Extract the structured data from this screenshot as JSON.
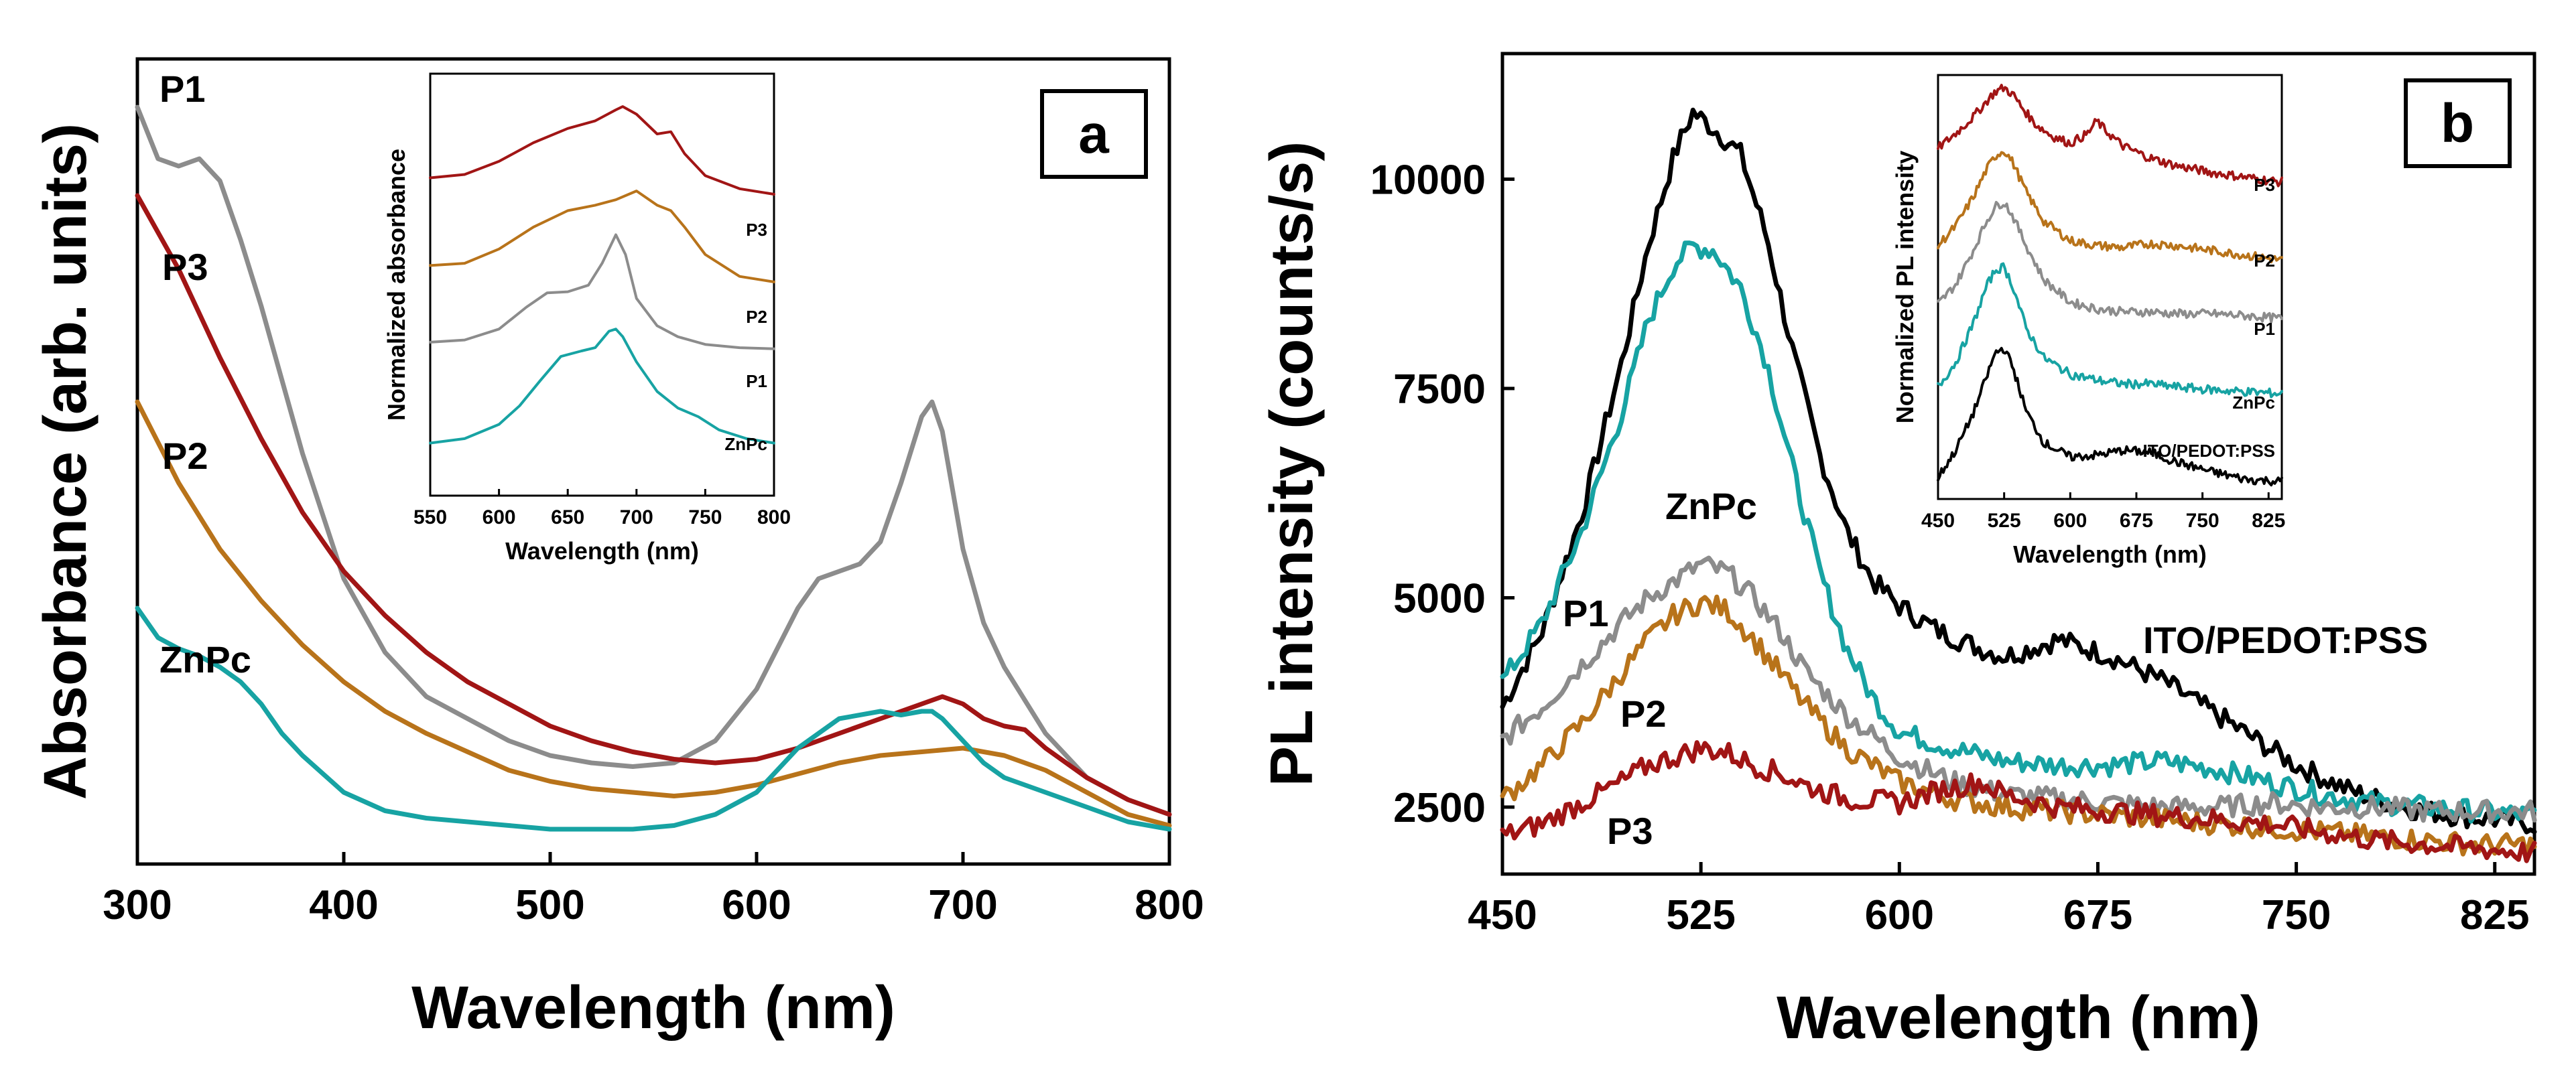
{
  "colors": {
    "P1": "#8c8c8c",
    "P2": "#b8731a",
    "P3": "#a11515",
    "ZnPc": "#17a3a3",
    "ITO/PEDOT:PSS": "#000000"
  },
  "chart_data": [
    {
      "panel": "a",
      "type": "line",
      "title": "",
      "xlabel": "Wavelength  (nm)",
      "ylabel": "Absorbance  (arb. units)",
      "xlim": [
        300,
        800
      ],
      "xticks": [
        "300",
        "400",
        "500",
        "600",
        "700",
        "800"
      ],
      "yticks": [],
      "series": [
        {
          "name": "P1",
          "x": [
            300,
            310,
            320,
            330,
            340,
            350,
            360,
            370,
            380,
            400,
            420,
            440,
            460,
            480,
            500,
            520,
            540,
            560,
            580,
            600,
            620,
            630,
            640,
            650,
            660,
            670,
            680,
            685,
            690,
            700,
            710,
            720,
            740,
            760,
            780,
            800
          ],
          "y": [
            1.0,
            0.93,
            0.92,
            0.93,
            0.9,
            0.82,
            0.73,
            0.63,
            0.53,
            0.36,
            0.26,
            0.2,
            0.17,
            0.14,
            0.12,
            0.11,
            0.105,
            0.11,
            0.14,
            0.21,
            0.32,
            0.36,
            0.37,
            0.38,
            0.41,
            0.49,
            0.58,
            0.6,
            0.56,
            0.4,
            0.3,
            0.24,
            0.15,
            0.09,
            0.06,
            0.04
          ]
        },
        {
          "name": "P3",
          "x": [
            300,
            320,
            340,
            360,
            380,
            400,
            420,
            440,
            460,
            480,
            500,
            520,
            540,
            560,
            580,
            600,
            620,
            640,
            660,
            680,
            690,
            700,
            710,
            720,
            730,
            740,
            760,
            780,
            800
          ],
          "y": [
            0.88,
            0.78,
            0.66,
            0.55,
            0.45,
            0.37,
            0.31,
            0.26,
            0.22,
            0.19,
            0.16,
            0.14,
            0.125,
            0.115,
            0.11,
            0.115,
            0.13,
            0.15,
            0.17,
            0.19,
            0.2,
            0.19,
            0.17,
            0.16,
            0.155,
            0.13,
            0.09,
            0.06,
            0.04
          ]
        },
        {
          "name": "P2",
          "x": [
            300,
            320,
            340,
            360,
            380,
            400,
            420,
            440,
            460,
            480,
            500,
            520,
            540,
            560,
            580,
            600,
            620,
            640,
            660,
            680,
            700,
            720,
            740,
            760,
            780,
            800
          ],
          "y": [
            0.6,
            0.49,
            0.4,
            0.33,
            0.27,
            0.22,
            0.18,
            0.15,
            0.125,
            0.1,
            0.085,
            0.075,
            0.07,
            0.065,
            0.07,
            0.08,
            0.095,
            0.11,
            0.12,
            0.125,
            0.13,
            0.12,
            0.1,
            0.07,
            0.04,
            0.025
          ]
        },
        {
          "name": "ZnPc",
          "x": [
            300,
            310,
            320,
            330,
            340,
            350,
            360,
            370,
            380,
            400,
            420,
            440,
            460,
            480,
            500,
            520,
            540,
            560,
            580,
            600,
            620,
            640,
            660,
            670,
            680,
            685,
            690,
            700,
            710,
            720,
            740,
            760,
            780,
            800
          ],
          "y": [
            0.32,
            0.28,
            0.265,
            0.255,
            0.24,
            0.22,
            0.19,
            0.15,
            0.12,
            0.07,
            0.045,
            0.035,
            0.03,
            0.025,
            0.02,
            0.02,
            0.02,
            0.025,
            0.04,
            0.07,
            0.13,
            0.17,
            0.18,
            0.175,
            0.18,
            0.18,
            0.17,
            0.14,
            0.11,
            0.09,
            0.07,
            0.05,
            0.03,
            0.02
          ]
        }
      ],
      "panel_label": "a",
      "inset": {
        "xlabel": "Wavelength  (nm)",
        "ylabel": "Normalized  absorbance",
        "xlim": [
          550,
          800
        ],
        "xticks": [
          "550",
          "600",
          "650",
          "700",
          "750",
          "800"
        ],
        "series": [
          {
            "name": "P3",
            "x": [
              550,
              575,
              600,
              625,
              650,
              670,
              685,
              690,
              700,
              715,
              725,
              735,
              750,
              775,
              800
            ],
            "y": [
              3.4,
              3.43,
              3.55,
              3.72,
              3.85,
              3.92,
              4.02,
              4.05,
              3.98,
              3.8,
              3.82,
              3.62,
              3.42,
              3.3,
              3.25
            ]
          },
          {
            "name": "P2",
            "x": [
              550,
              575,
              600,
              625,
              650,
              670,
              685,
              700,
              715,
              725,
              735,
              750,
              775,
              800
            ],
            "y": [
              2.6,
              2.62,
              2.75,
              2.95,
              3.1,
              3.15,
              3.2,
              3.28,
              3.15,
              3.1,
              2.95,
              2.7,
              2.5,
              2.45
            ]
          },
          {
            "name": "P1",
            "x": [
              550,
              575,
              600,
              620,
              635,
              650,
              665,
              675,
              685,
              692,
              700,
              715,
              730,
              750,
              775,
              800
            ],
            "y": [
              1.9,
              1.92,
              2.02,
              2.22,
              2.35,
              2.36,
              2.42,
              2.62,
              2.88,
              2.7,
              2.3,
              2.05,
              1.95,
              1.88,
              1.85,
              1.84
            ]
          },
          {
            "name": "ZnPc",
            "x": [
              550,
              575,
              600,
              615,
              630,
              645,
              660,
              670,
              680,
              685,
              690,
              700,
              715,
              730,
              745,
              760,
              780,
              800
            ],
            "y": [
              0.98,
              1.02,
              1.15,
              1.32,
              1.55,
              1.77,
              1.82,
              1.85,
              2.0,
              2.02,
              1.95,
              1.72,
              1.45,
              1.3,
              1.22,
              1.1,
              1.02,
              0.98
            ]
          }
        ]
      }
    },
    {
      "panel": "b",
      "type": "line",
      "title": "",
      "xlabel": "Wavelength  (nm)",
      "ylabel": "PL  intensity  (counts/s)",
      "xlim": [
        450,
        840
      ],
      "ylim": [
        1700,
        11500
      ],
      "xticks": [
        450,
        525,
        600,
        675,
        750,
        825
      ],
      "yticks": [
        2500,
        5000,
        7500,
        10000
      ],
      "series": [
        {
          "name": "ITO/PEDOT:PSS",
          "x": [
            450,
            465,
            480,
            495,
            505,
            515,
            522,
            530,
            540,
            550,
            560,
            570,
            580,
            590,
            600,
            615,
            630,
            640,
            660,
            680,
            700,
            715,
            730,
            750,
            770,
            790,
            810,
            825,
            840
          ],
          "y": [
            3700,
            4600,
            6000,
            7800,
            9200,
            10300,
            10800,
            10600,
            10300,
            9300,
            7900,
            6700,
            5800,
            5200,
            4900,
            4600,
            4400,
            4300,
            4500,
            4300,
            4000,
            3700,
            3400,
            3000,
            2700,
            2500,
            2400,
            2350,
            2300
          ]
        },
        {
          "name": "ZnPc",
          "x": [
            450,
            465,
            480,
            495,
            505,
            515,
            522,
            530,
            540,
            550,
            560,
            570,
            580,
            590,
            600,
            620,
            640,
            660,
            680,
            700,
            720,
            740,
            760,
            780,
            800,
            820,
            840
          ],
          "y": [
            4000,
            4700,
            5800,
            7200,
            8300,
            9000,
            9200,
            9150,
            8700,
            7800,
            6500,
            5300,
            4400,
            3800,
            3400,
            3200,
            3050,
            3000,
            3000,
            3050,
            2950,
            2800,
            2650,
            2550,
            2500,
            2450,
            2400
          ]
        },
        {
          "name": "P1",
          "x": [
            450,
            465,
            480,
            495,
            505,
            515,
            525,
            535,
            545,
            555,
            565,
            580,
            600,
            620,
            640,
            660,
            680,
            700,
            720,
            740,
            760,
            780,
            800,
            820,
            840
          ],
          "y": [
            3300,
            3700,
            4200,
            4700,
            5000,
            5200,
            5400,
            5300,
            5000,
            4600,
            4100,
            3600,
            3100,
            2800,
            2650,
            2600,
            2550,
            2500,
            2500,
            2550,
            2500,
            2500,
            2450,
            2450,
            2450
          ]
        },
        {
          "name": "P2",
          "x": [
            450,
            465,
            480,
            495,
            505,
            515,
            525,
            535,
            545,
            555,
            565,
            580,
            600,
            620,
            640,
            660,
            680,
            700,
            720,
            740,
            760,
            780,
            800,
            820,
            840
          ],
          "y": [
            2600,
            3000,
            3500,
            4100,
            4500,
            4800,
            4950,
            4850,
            4500,
            4100,
            3700,
            3200,
            2800,
            2600,
            2500,
            2450,
            2400,
            2350,
            2300,
            2250,
            2200,
            2150,
            2100,
            2050,
            2050
          ]
        },
        {
          "name": "P3",
          "x": [
            450,
            465,
            480,
            495,
            505,
            515,
            525,
            535,
            545,
            555,
            565,
            580,
            600,
            615,
            630,
            640,
            660,
            680,
            700,
            720,
            740,
            760,
            780,
            800,
            820,
            840
          ],
          "y": [
            2150,
            2300,
            2550,
            2800,
            3000,
            3100,
            3200,
            3150,
            3000,
            2900,
            2750,
            2600,
            2550,
            2700,
            2800,
            2650,
            2500,
            2450,
            2400,
            2350,
            2300,
            2200,
            2100,
            2050,
            2000,
            1950
          ]
        }
      ],
      "panel_label": "b",
      "inset": {
        "xlabel": "Wavelength  (nm)",
        "ylabel": "Normalized  PL  intensity",
        "xlim": [
          450,
          840
        ],
        "xticks": [
          "450",
          "525",
          "600",
          "675",
          "750",
          "825"
        ],
        "series": [
          {
            "name": "P3",
            "x": [
              450,
              470,
              490,
              505,
              515,
              525,
              535,
              545,
              560,
              580,
              600,
              620,
              630,
              640,
              660,
              690,
              720,
              760,
              800,
              840
            ],
            "y": [
              4.3,
              4.45,
              4.62,
              4.78,
              4.88,
              4.92,
              4.85,
              4.72,
              4.55,
              4.42,
              4.35,
              4.45,
              4.58,
              4.48,
              4.32,
              4.2,
              4.12,
              4.05,
              4.0,
              3.95
            ]
          },
          {
            "name": "P2",
            "x": [
              450,
              470,
              490,
              505,
              515,
              525,
              535,
              550,
              570,
              600,
              630,
              660,
              690,
              720,
              760,
              800,
              840
            ],
            "y": [
              3.3,
              3.5,
              3.8,
              4.08,
              4.22,
              4.28,
              4.15,
              3.85,
              3.55,
              3.35,
              3.3,
              3.28,
              3.32,
              3.3,
              3.25,
              3.2,
              3.15
            ]
          },
          {
            "name": "P1",
            "x": [
              450,
              470,
              490,
              505,
              515,
              525,
              535,
              550,
              570,
              600,
              630,
              660,
              690,
              720,
              760,
              800,
              840
            ],
            "y": [
              2.7,
              2.9,
              3.25,
              3.55,
              3.7,
              3.75,
              3.6,
              3.3,
              2.95,
              2.72,
              2.65,
              2.62,
              2.62,
              2.6,
              2.6,
              2.58,
              2.55
            ]
          },
          {
            "name": "ZnPc",
            "x": [
              450,
              470,
              490,
              505,
              515,
              525,
              535,
              550,
              570,
              600,
              630,
              660,
              690,
              720,
              760,
              800,
              840
            ],
            "y": [
              1.85,
              2.1,
              2.5,
              2.88,
              3.05,
              3.08,
              2.88,
              2.45,
              2.15,
              1.98,
              1.92,
              1.88,
              1.88,
              1.85,
              1.82,
              1.8,
              1.78
            ]
          },
          {
            "name": "ITO/PEDOT:PSS",
            "x": [
              450,
              470,
              490,
              505,
              515,
              525,
              535,
              550,
              570,
              600,
              630,
              660,
              690,
              720,
              760,
              800,
              840
            ],
            "y": [
              0.92,
              1.2,
              1.58,
              1.95,
              2.2,
              2.25,
              2.05,
              1.6,
              1.28,
              1.13,
              1.15,
              1.2,
              1.18,
              1.08,
              0.98,
              0.9,
              0.88
            ]
          }
        ]
      }
    }
  ]
}
